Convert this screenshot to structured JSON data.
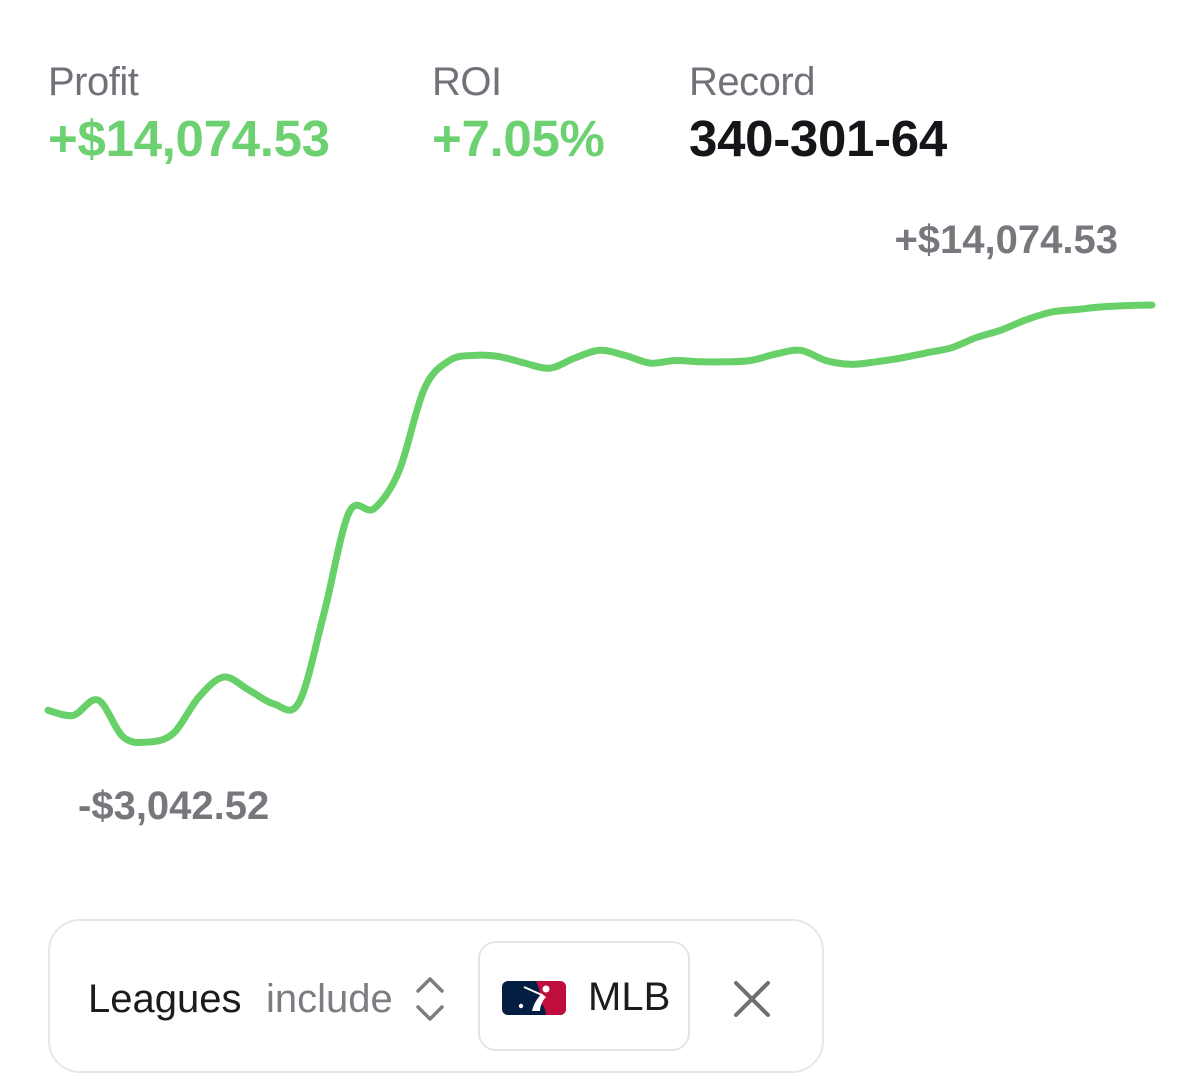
{
  "stats": {
    "profit": {
      "label": "Profit",
      "value": "+$14,074.53"
    },
    "roi": {
      "label": "ROI",
      "value": "+7.05%"
    },
    "record": {
      "label": "Record",
      "value": "340-301-64"
    }
  },
  "chart": {
    "max_label": "+$14,074.53",
    "min_label": "-$3,042.52"
  },
  "chart_data": {
    "type": "line",
    "x": [
      0,
      1,
      2,
      3,
      4,
      5,
      6,
      7,
      8,
      9,
      10,
      11,
      12,
      13,
      14,
      15,
      16,
      17,
      18,
      19,
      20,
      21,
      22,
      23,
      24,
      25,
      26,
      27,
      28,
      29,
      30,
      31,
      32,
      33,
      34,
      35,
      36,
      37,
      38,
      39,
      40,
      41,
      42,
      43,
      44
    ],
    "series": [
      {
        "values": [
          -1800,
          -2000,
          -1400,
          -2850,
          -3042.52,
          -2700,
          -1300,
          -500,
          -1000,
          -1550,
          -1500,
          2000,
          5950,
          6100,
          7600,
          10800,
          11900,
          12100,
          12050,
          11800,
          11600,
          12000,
          12300,
          12100,
          11800,
          11900,
          11850,
          11850,
          11900,
          12150,
          12300,
          11900,
          11750,
          11850,
          12000,
          12200,
          12400,
          12800,
          13100,
          13500,
          13800,
          13900,
          14000,
          14050,
          14074.53
        ]
      }
    ],
    "ylim": [
      -3042.52,
      14074.53
    ],
    "line_color": "#68d068",
    "grid": false,
    "legend": "none"
  },
  "filter": {
    "field": "Leagues",
    "operator": "include",
    "league": "MLB"
  },
  "icons": {
    "operator_toggle": "chevron-up-down-icon",
    "league_logo": "mlb-logo",
    "remove": "close-icon"
  },
  "colors": {
    "positive": "#6dd171",
    "line": "#68d068",
    "muted_text": "#76787d",
    "mlb_blue": "#041e42",
    "mlb_red": "#bf0d3e"
  }
}
